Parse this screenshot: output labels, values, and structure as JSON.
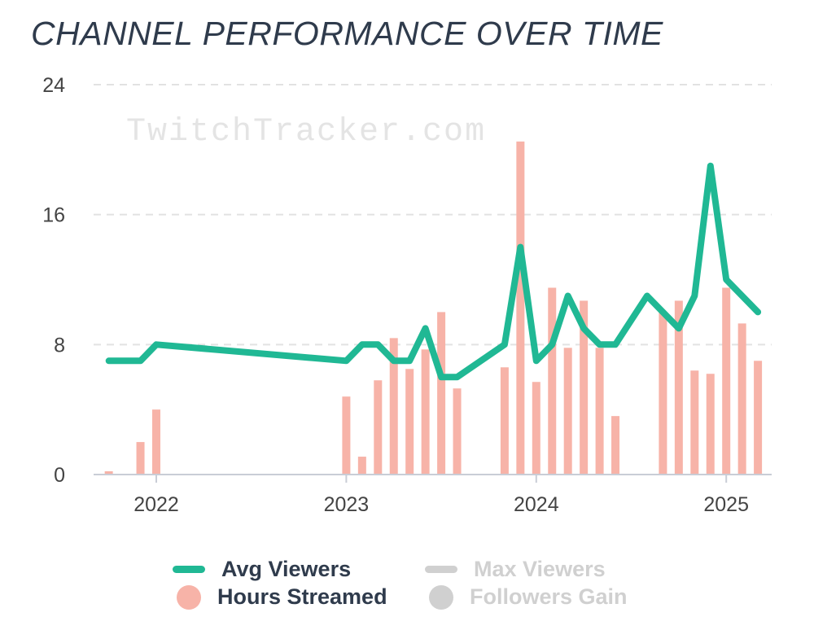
{
  "title": "CHANNEL PERFORMANCE OVER TIME",
  "watermark": "TwitchTracker.com",
  "colors": {
    "avg_viewers": "#20b894",
    "hours_streamed": "#f7b3a8",
    "inactive": "#d0d0d0",
    "axis": "#c9cdd6",
    "grid": "#e2e2e2",
    "tick_text": "#444444",
    "title": "#2f3b4c"
  },
  "legend": [
    {
      "label": "Avg Viewers",
      "symbol": "line",
      "color": "#20b894",
      "active": true
    },
    {
      "label": "Max Viewers",
      "symbol": "line",
      "color": "#d0d0d0",
      "active": false
    },
    {
      "label": "Hours Streamed",
      "symbol": "dot",
      "color": "#f7b3a8",
      "active": true
    },
    {
      "label": "Followers Gain",
      "symbol": "dot",
      "color": "#d0d0d0",
      "active": false
    }
  ],
  "chart_data": {
    "type": "bar",
    "title": "CHANNEL PERFORMANCE OVER TIME",
    "xlabel": "",
    "ylabel": "",
    "ylim": [
      0,
      24
    ],
    "yticks": [
      0,
      8,
      16,
      24
    ],
    "xticks": [
      "2022",
      "2023",
      "2024",
      "2025"
    ],
    "grid": true,
    "legend_position": "bottom",
    "series": [
      {
        "name": "Hours Streamed",
        "type": "bar",
        "points": [
          {
            "x": "2021-10",
            "y": 0.2
          },
          {
            "x": "2021-12",
            "y": 2.0
          },
          {
            "x": "2022-01",
            "y": 4.0
          },
          {
            "x": "2023-01",
            "y": 4.8
          },
          {
            "x": "2023-02",
            "y": 1.1
          },
          {
            "x": "2023-03",
            "y": 5.8
          },
          {
            "x": "2023-04",
            "y": 8.4
          },
          {
            "x": "2023-05",
            "y": 6.5
          },
          {
            "x": "2023-06",
            "y": 7.7
          },
          {
            "x": "2023-07",
            "y": 10.0
          },
          {
            "x": "2023-08",
            "y": 5.3
          },
          {
            "x": "2023-11",
            "y": 6.6
          },
          {
            "x": "2023-12",
            "y": 20.5
          },
          {
            "x": "2024-01",
            "y": 5.7
          },
          {
            "x": "2024-02",
            "y": 11.5
          },
          {
            "x": "2024-03",
            "y": 7.8
          },
          {
            "x": "2024-04",
            "y": 10.7
          },
          {
            "x": "2024-05",
            "y": 7.8
          },
          {
            "x": "2024-06",
            "y": 3.6
          },
          {
            "x": "2024-09",
            "y": 10.0
          },
          {
            "x": "2024-10",
            "y": 10.7
          },
          {
            "x": "2024-11",
            "y": 6.4
          },
          {
            "x": "2024-12",
            "y": 6.2
          },
          {
            "x": "2025-01",
            "y": 11.5
          },
          {
            "x": "2025-02",
            "y": 9.3
          },
          {
            "x": "2025-03",
            "y": 7.0
          }
        ]
      },
      {
        "name": "Avg Viewers",
        "type": "line",
        "points": [
          {
            "x": "2021-10",
            "y": 7
          },
          {
            "x": "2021-12",
            "y": 7
          },
          {
            "x": "2022-01",
            "y": 8
          },
          {
            "x": "2023-01",
            "y": 7
          },
          {
            "x": "2023-02",
            "y": 8
          },
          {
            "x": "2023-03",
            "y": 8
          },
          {
            "x": "2023-04",
            "y": 7
          },
          {
            "x": "2023-05",
            "y": 7
          },
          {
            "x": "2023-06",
            "y": 9
          },
          {
            "x": "2023-07",
            "y": 6
          },
          {
            "x": "2023-08",
            "y": 6
          },
          {
            "x": "2023-11",
            "y": 8
          },
          {
            "x": "2023-12",
            "y": 14
          },
          {
            "x": "2024-01",
            "y": 7
          },
          {
            "x": "2024-02",
            "y": 8
          },
          {
            "x": "2024-03",
            "y": 11
          },
          {
            "x": "2024-04",
            "y": 9
          },
          {
            "x": "2024-05",
            "y": 8
          },
          {
            "x": "2024-06",
            "y": 8
          },
          {
            "x": "2024-08",
            "y": 11
          },
          {
            "x": "2024-10",
            "y": 9
          },
          {
            "x": "2024-11",
            "y": 11
          },
          {
            "x": "2024-12",
            "y": 19
          },
          {
            "x": "2025-01",
            "y": 12
          },
          {
            "x": "2025-03",
            "y": 10
          }
        ]
      }
    ]
  }
}
